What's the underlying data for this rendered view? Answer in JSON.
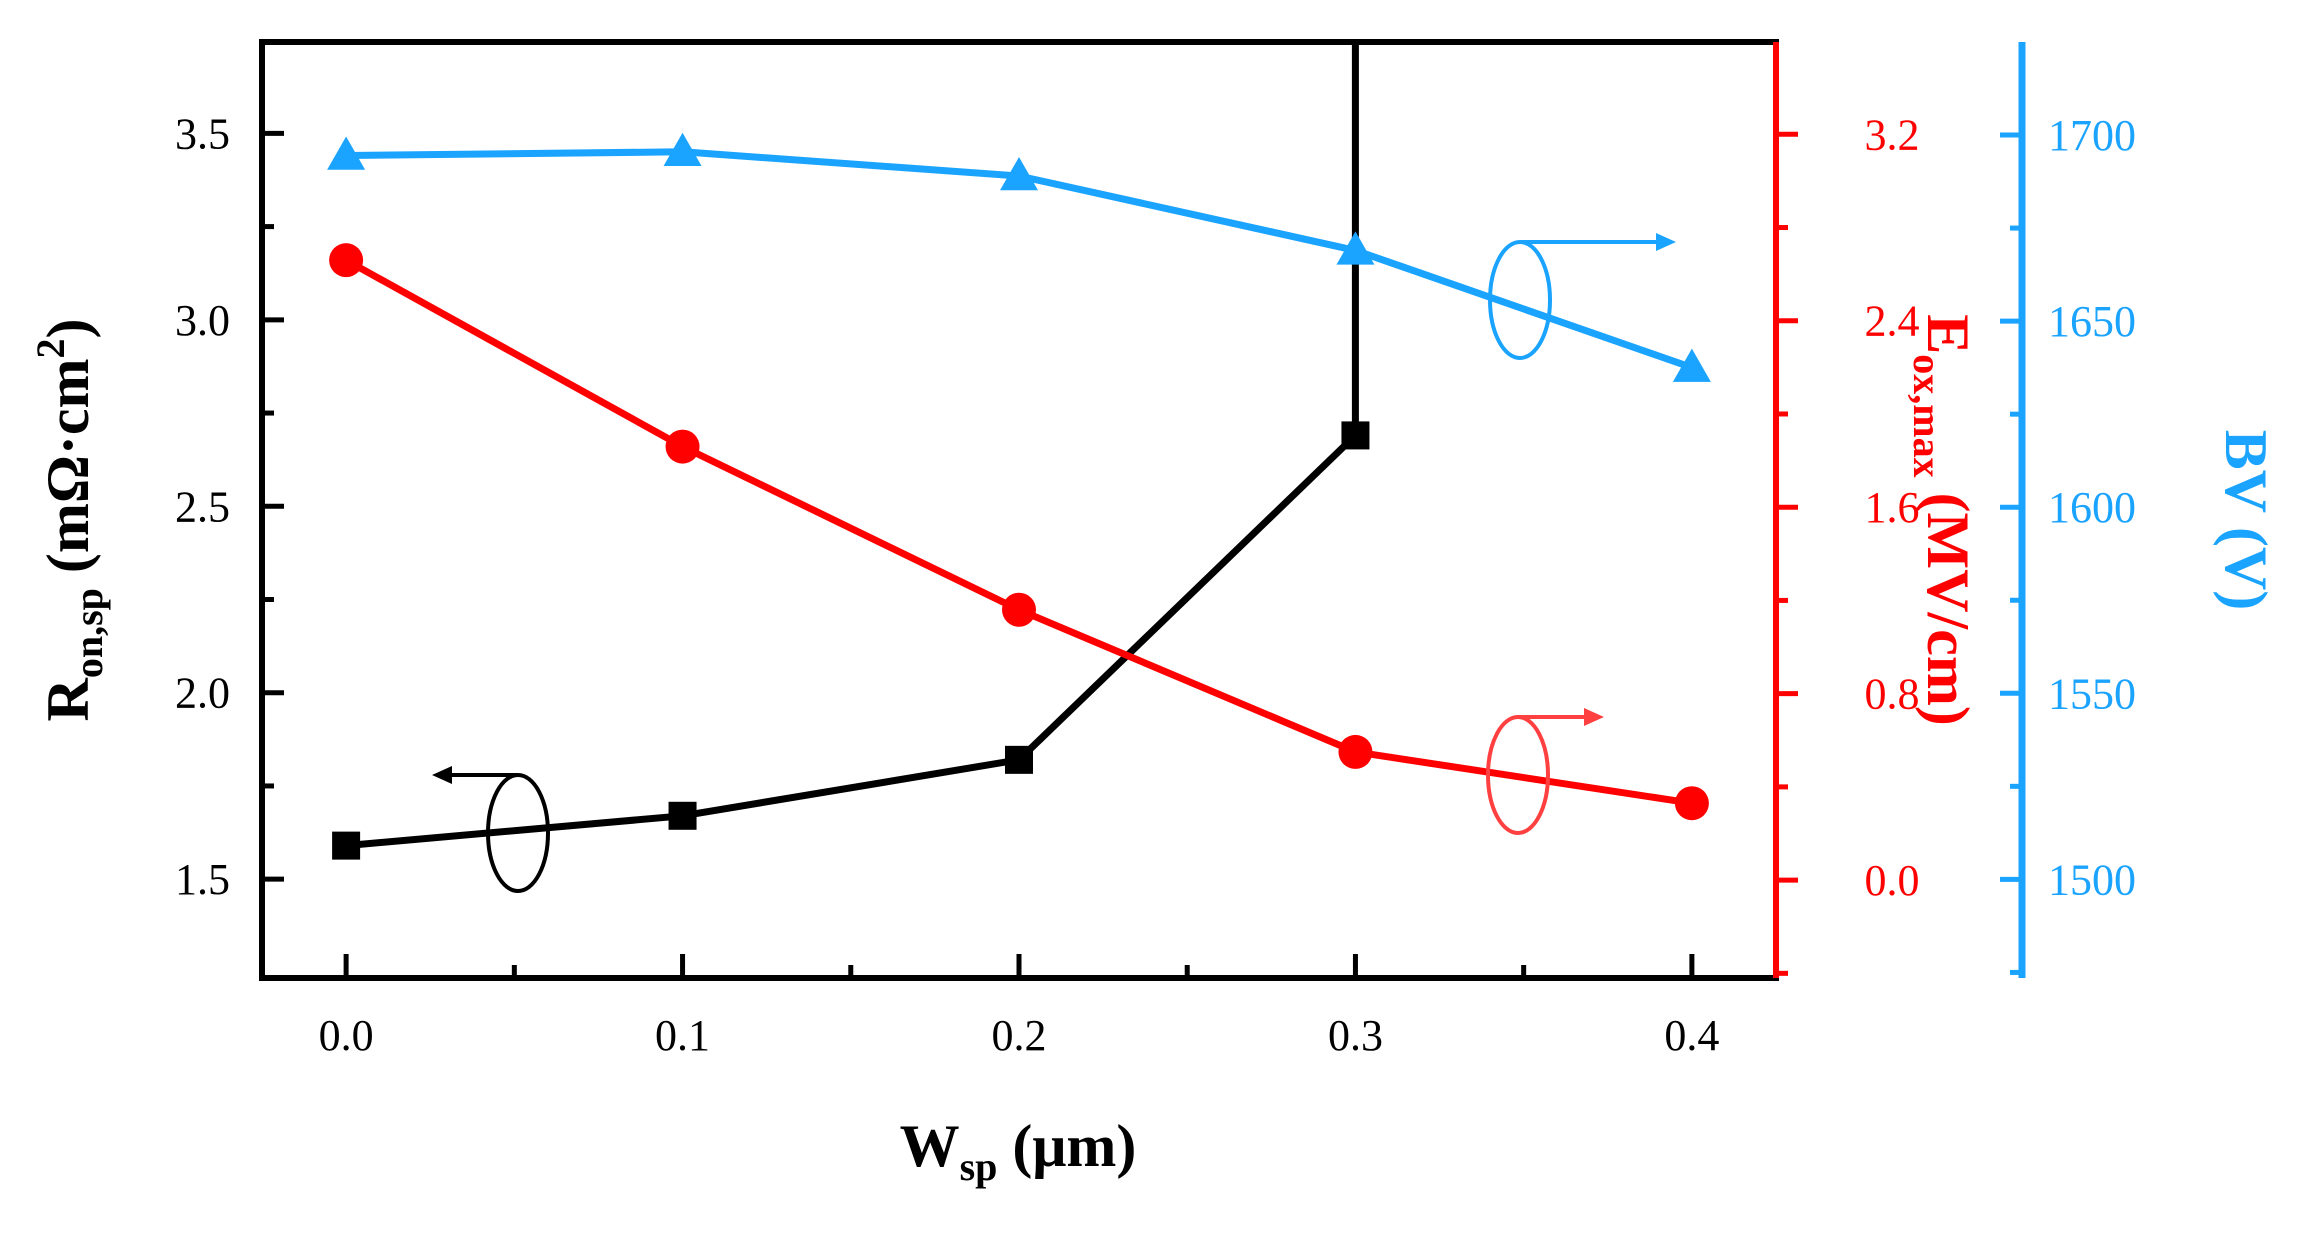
{
  "chart_data": {
    "type": "line",
    "x": [
      0.0,
      0.1,
      0.2,
      0.3,
      0.4
    ],
    "x_tick_labels": [
      "0.0",
      "0.1",
      "0.2",
      "0.3",
      "0.4"
    ],
    "xlim": [
      -0.025,
      0.425
    ],
    "xlabel": {
      "main": "W",
      "sub": "sp",
      "unit": " (μm)"
    },
    "axes": [
      {
        "id": "left",
        "color": "#000000",
        "label": {
          "main": "R",
          "sub": "on,sp",
          "unit": " (mΩ·cm",
          "sup": "2",
          "close": ")"
        },
        "ylim": [
          1.235,
          3.745
        ],
        "tick_values": [
          1.5,
          2.0,
          2.5,
          3.0,
          3.5
        ],
        "tick_labels": [
          "1.5",
          "2.0",
          "2.5",
          "3.0",
          "3.5"
        ]
      },
      {
        "id": "right-red",
        "color": "#ff0000",
        "label": {
          "main": "E",
          "sub": "ox,max",
          "unit": " (MV/cm)"
        },
        "ylim": [
          -0.42,
          3.596
        ],
        "tick_values": [
          0.0,
          0.8,
          1.6,
          2.4,
          3.2
        ],
        "tick_labels": [
          "0.0",
          "0.8",
          "1.6",
          "2.4",
          "3.2"
        ]
      },
      {
        "id": "right-blue",
        "color": "#1aa3ff",
        "label": {
          "main": "BV (V)"
        },
        "ylim": [
          1473.5,
          1725
        ],
        "tick_values": [
          1500,
          1550,
          1600,
          1650,
          1700
        ],
        "tick_labels": [
          "1500",
          "1550",
          "1600",
          "1650",
          "1700"
        ]
      }
    ],
    "series": [
      {
        "name": "Ron,sp",
        "axis": "left",
        "marker": "square",
        "color": "#000000",
        "values": [
          1.59,
          1.67,
          1.82,
          2.69,
          null
        ],
        "extend_to_top_at": 0.3
      },
      {
        "name": "Eox,max",
        "axis": "right-red",
        "marker": "circle",
        "color": "#ff0000",
        "values": [
          2.66,
          1.86,
          1.16,
          0.55,
          0.33
        ]
      },
      {
        "name": "BV",
        "axis": "right-blue",
        "marker": "triangle",
        "color": "#1aa3ff",
        "values": [
          1694.5,
          1695.5,
          1689,
          1669,
          1637.5
        ]
      }
    ]
  }
}
